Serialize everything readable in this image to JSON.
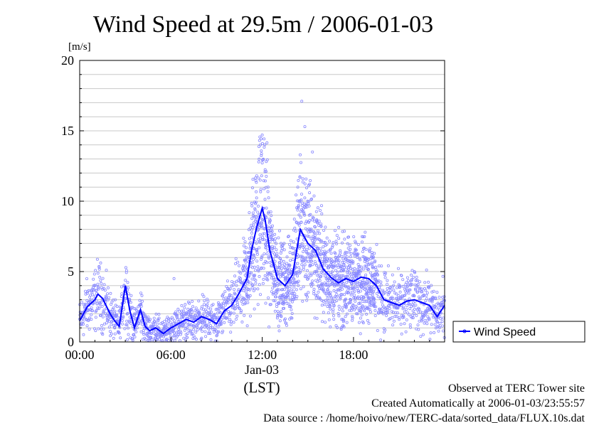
{
  "chart_data": {
    "type": "scatter",
    "title": "Wind Speed at 29.5m / 2006-01-03",
    "ylabel": "[m/s]",
    "xlabel": "(LST)",
    "date_label": "Jan-03",
    "ylim": [
      0,
      20
    ],
    "xlim_hours": [
      0,
      23.99
    ],
    "y_ticks": [
      0,
      5,
      10,
      15,
      20
    ],
    "y_tick_labels": [
      "0",
      "5",
      "10",
      "15",
      "20"
    ],
    "x_ticks": [
      0,
      6,
      12,
      18
    ],
    "x_tick_labels": [
      "00:00",
      "06:00",
      "12:00",
      "18:00"
    ],
    "grid": true,
    "legend": "outside-right-bottom",
    "colors": {
      "line": "#0000ff",
      "points": "#8a8aff"
    },
    "series": [
      {
        "name": "Wind Speed",
        "kind": "line (running mean) with 10 s scatter samples",
        "x_hours": [
          0.0,
          0.5,
          1.0,
          1.2,
          1.5,
          2.0,
          2.3,
          2.6,
          3.0,
          3.3,
          3.6,
          4.0,
          4.3,
          4.6,
          5.0,
          5.5,
          6.0,
          6.5,
          7.0,
          7.5,
          8.0,
          8.5,
          9.0,
          9.5,
          10.0,
          10.5,
          11.0,
          11.3,
          11.6,
          12.0,
          12.2,
          12.5,
          13.0,
          13.5,
          14.0,
          14.5,
          15.0,
          15.5,
          16.0,
          16.5,
          17.0,
          17.5,
          18.0,
          18.5,
          19.0,
          19.5,
          20.0,
          20.5,
          21.0,
          21.5,
          22.0,
          22.5,
          23.0,
          23.5,
          23.99
        ],
        "values": [
          1.5,
          2.5,
          3.0,
          3.4,
          3.1,
          2.0,
          1.5,
          1.1,
          4.0,
          2.2,
          1.0,
          2.3,
          1.1,
          0.8,
          1.0,
          0.6,
          1.0,
          1.3,
          1.6,
          1.4,
          1.8,
          1.6,
          1.3,
          2.2,
          2.6,
          3.5,
          4.5,
          6.5,
          8.0,
          9.5,
          8.6,
          6.5,
          4.5,
          4.0,
          4.8,
          8.0,
          7.0,
          6.5,
          5.2,
          4.6,
          4.2,
          4.5,
          4.3,
          4.6,
          4.5,
          4.0,
          3.0,
          2.8,
          2.6,
          2.9,
          3.0,
          2.8,
          2.6,
          1.8,
          2.6
        ]
      }
    ],
    "peak_samples": [
      {
        "x_hour": 12.0,
        "value": 14.7
      },
      {
        "x_hour": 14.6,
        "value": 17.1
      },
      {
        "x_hour": 14.8,
        "value": 15.3
      },
      {
        "x_hour": 15.3,
        "value": 13.5
      },
      {
        "x_hour": 6.2,
        "value": 4.5
      }
    ]
  },
  "footer": {
    "observed": "Observed at TERC Tower site",
    "created": "Created Automatically at 2006-01-03/23:55:57",
    "source": "Data source : /home/hoivo/new/TERC-data/sorted_data/FLUX.10s.dat"
  }
}
